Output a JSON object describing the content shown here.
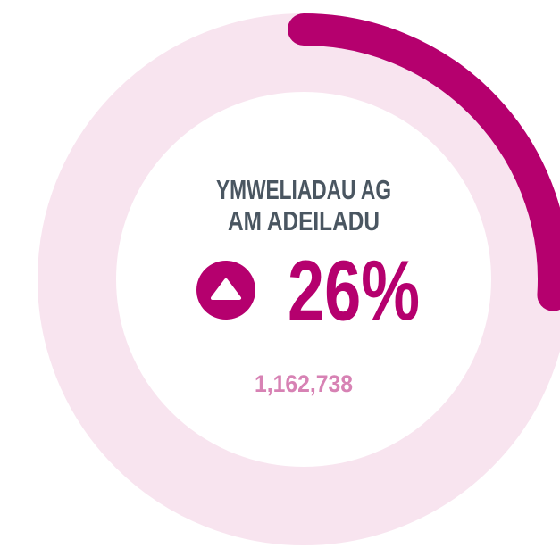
{
  "chart_data": {
    "type": "donut",
    "title": [
      "YMWELIADAU AG",
      "AM ADEILADU"
    ],
    "values": [
      26
    ],
    "value_labels": [
      "26%"
    ],
    "annotation": "1,162,738",
    "color": "#b5006e",
    "track_color": "#f8e4ef"
  }
}
